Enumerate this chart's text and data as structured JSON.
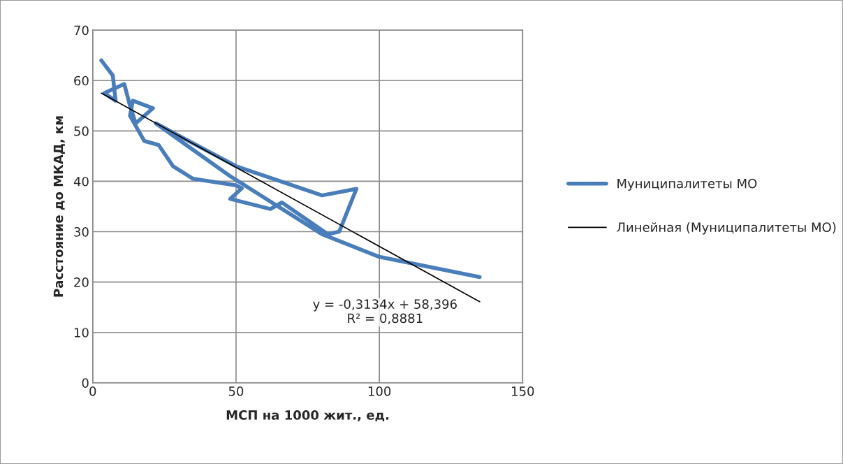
{
  "chart_data": {
    "type": "line",
    "xlabel": "МСП на 1000 жит., ед.",
    "ylabel": "Расстояние до МКАД, км",
    "xlim": [
      0,
      150
    ],
    "xticks": [
      0,
      50,
      100,
      150
    ],
    "ylim": [
      0,
      70
    ],
    "yticks": [
      0,
      10,
      20,
      30,
      40,
      50,
      60,
      70
    ],
    "grid": true,
    "legend": "right",
    "marker": "none",
    "series": [
      {
        "name": "Муниципалитеты МО",
        "color": "#4a7ebb",
        "x": [
          3,
          7,
          8,
          4,
          11,
          13,
          15,
          21,
          14,
          13,
          18,
          23,
          28,
          35,
          50,
          52,
          48,
          62,
          66,
          82,
          86,
          92,
          80,
          50,
          22,
          48,
          80,
          100,
          135
        ],
        "values": [
          64,
          61,
          56,
          57.5,
          59.3,
          55,
          51.5,
          54.5,
          56,
          53,
          48,
          47.2,
          43,
          40.5,
          39.2,
          38.6,
          36.5,
          34.5,
          35.8,
          29.5,
          30,
          38.5,
          37.2,
          43,
          51.5,
          41,
          29.5,
          25,
          21
        ]
      },
      {
        "name": "Линейная (Муниципалитеты МО)",
        "color": "#000000",
        "x": [
          3,
          135
        ],
        "values": [
          57.5,
          16.1
        ]
      }
    ],
    "annotations": [
      "y = -0,3134x + 58,396\nR² = 0,8881"
    ]
  }
}
